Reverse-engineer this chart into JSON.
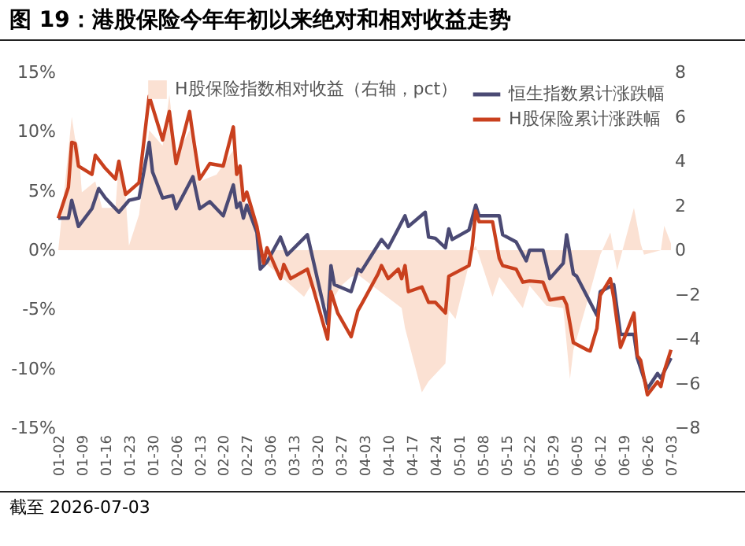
{
  "chart_data": {
    "type": "line",
    "title": "图 19：港股保险今年年初以来绝对和相对收益走势",
    "annotations": [
      "截至 2026-07-03"
    ],
    "legend": "top right",
    "xlim": [
      "2026-01-02",
      "2026-07-03"
    ],
    "xticks": [
      {
        "value": "2026-01-02",
        "label": "01-02"
      },
      {
        "value": "2026-01-09",
        "label": "01-09"
      },
      {
        "value": "2026-01-16",
        "label": "01-16"
      },
      {
        "value": "2026-01-23",
        "label": "01-23"
      },
      {
        "value": "2026-01-30",
        "label": "01-30"
      },
      {
        "value": "2026-02-06",
        "label": "02-06"
      },
      {
        "value": "2026-02-13",
        "label": "02-13"
      },
      {
        "value": "2026-02-20",
        "label": "02-20"
      },
      {
        "value": "2026-02-27",
        "label": "02-27"
      },
      {
        "value": "2026-03-06",
        "label": "03-06"
      },
      {
        "value": "2026-03-13",
        "label": "03-13"
      },
      {
        "value": "2026-03-20",
        "label": "03-20"
      },
      {
        "value": "2026-03-27",
        "label": "03-27"
      },
      {
        "value": "2026-04-03",
        "label": "04-03"
      },
      {
        "value": "2026-04-10",
        "label": "04-10"
      },
      {
        "value": "2026-04-17",
        "label": "04-17"
      },
      {
        "value": "2026-04-24",
        "label": "04-24"
      },
      {
        "value": "2026-05-01",
        "label": "05-01"
      },
      {
        "value": "2026-05-08",
        "label": "05-08"
      },
      {
        "value": "2026-05-15",
        "label": "05-15"
      },
      {
        "value": "2026-05-22",
        "label": "05-22"
      },
      {
        "value": "2026-05-29",
        "label": "05-29"
      },
      {
        "value": "2026-06-05",
        "label": "06-05"
      },
      {
        "value": "2026-06-12",
        "label": "06-12"
      },
      {
        "value": "2026-06-19",
        "label": "06-19"
      },
      {
        "value": "2026-06-26",
        "label": "06-26"
      },
      {
        "value": "2026-07-03",
        "label": "07-03"
      }
    ],
    "ylim": [
      -15,
      15
    ],
    "yticks": [
      {
        "value": -15,
        "label": "-15%"
      },
      {
        "value": -10,
        "label": "-10%"
      },
      {
        "value": -5,
        "label": "-5%"
      },
      {
        "value": 0,
        "label": "0%"
      },
      {
        "value": 5,
        "label": "5%"
      },
      {
        "value": 10,
        "label": "10%"
      },
      {
        "value": 15,
        "label": "15%"
      }
    ],
    "y2lim": [
      -8,
      8
    ],
    "y2ticks": [
      -8,
      -6,
      -4,
      -2,
      0,
      2,
      4,
      6,
      8
    ],
    "series": [
      {
        "name": "H股保险指数相对收益（右轴，pct）",
        "type": "area",
        "axis": "y2",
        "color": "#fbe1d3",
        "x": [
          "2026-01-02",
          "2026-01-06",
          "2026-01-07",
          "2026-01-08",
          "2026-01-09",
          "2026-01-13",
          "2026-01-15",
          "2026-01-19",
          "2026-01-20",
          "2026-01-22",
          "2026-01-23",
          "2026-01-26",
          "2026-01-29",
          "2026-02-02",
          "2026-02-04",
          "2026-02-06",
          "2026-02-10",
          "2026-02-13",
          "2026-02-18",
          "2026-02-23",
          "2026-02-26",
          "2026-03-02",
          "2026-03-04",
          "2026-03-16",
          "2026-03-18",
          "2026-03-23",
          "2026-03-27",
          "2026-03-30",
          "2026-04-01",
          "2026-04-07",
          "2026-04-14",
          "2026-04-15",
          "2026-04-20",
          "2026-04-22",
          "2026-04-27",
          "2026-04-28",
          "2026-04-30",
          "2026-05-05",
          "2026-05-06",
          "2026-05-11",
          "2026-05-13",
          "2026-05-20",
          "2026-05-22",
          "2026-05-27",
          "2026-06-01",
          "2026-06-03",
          "2026-06-04",
          "2026-06-08",
          "2026-06-12",
          "2026-06-15",
          "2026-06-17",
          "2026-06-22",
          "2026-06-24",
          "2026-06-25",
          "2026-06-30",
          "2026-07-01",
          "2026-07-03"
        ],
        "values": [
          0,
          6.0,
          5.0,
          4.7,
          2.6,
          3.1,
          1.9,
          1.9,
          4.1,
          2.4,
          0.2,
          1.6,
          5.4,
          4.7,
          7.0,
          4.2,
          5.4,
          3.1,
          3.4,
          4.5,
          2.4,
          0.7,
          -0.5,
          -2.1,
          -1.6,
          -2.6,
          -1.6,
          -1.2,
          -1.1,
          -1.8,
          -2.6,
          -3.5,
          -6.4,
          -5.9,
          -5.1,
          -2.7,
          -3.1,
          0,
          0.2,
          -2.1,
          -1.2,
          -2.6,
          -1.6,
          -2.5,
          -2.6,
          -5.8,
          -4.5,
          -2.4,
          -0.2,
          0.8,
          -0.9,
          1.9,
          0.3,
          -0.2,
          0,
          1.1,
          0.3
        ]
      },
      {
        "name": "恒生指数累计涨跌幅",
        "color": "#4b4a74",
        "x": [
          "2026-01-02",
          "2026-01-05",
          "2026-01-06",
          "2026-01-08",
          "2026-01-12",
          "2026-01-14",
          "2026-01-16",
          "2026-01-20",
          "2026-01-23",
          "2026-01-26",
          "2026-01-29",
          "2026-01-30",
          "2026-02-02",
          "2026-02-05",
          "2026-02-06",
          "2026-02-11",
          "2026-02-13",
          "2026-02-16",
          "2026-02-20",
          "2026-02-23",
          "2026-02-24",
          "2026-02-25",
          "2026-02-26",
          "2026-02-27",
          "2026-03-02",
          "2026-03-03",
          "2026-03-05",
          "2026-03-09",
          "2026-03-11",
          "2026-03-17",
          "2026-03-23",
          "2026-03-24",
          "2026-03-25",
          "2026-03-30",
          "2026-04-01",
          "2026-04-02",
          "2026-04-06",
          "2026-04-08",
          "2026-04-10",
          "2026-04-15",
          "2026-04-16",
          "2026-04-21",
          "2026-04-22",
          "2026-04-24",
          "2026-04-27",
          "2026-04-28",
          "2026-04-29",
          "2026-05-04",
          "2026-05-06",
          "2026-05-07",
          "2026-05-13",
          "2026-05-14",
          "2026-05-18",
          "2026-05-21",
          "2026-05-22",
          "2026-05-26",
          "2026-05-28",
          "2026-06-01",
          "2026-06-02",
          "2026-06-04",
          "2026-06-05",
          "2026-06-11",
          "2026-06-12",
          "2026-06-16",
          "2026-06-18",
          "2026-06-22",
          "2026-06-23",
          "2026-06-26",
          "2026-06-29",
          "2026-06-30",
          "2026-07-03"
        ],
        "values": [
          2.7,
          2.7,
          4.2,
          2.0,
          3.5,
          5.2,
          4.4,
          3.2,
          4.2,
          4.4,
          9.1,
          6.6,
          4.4,
          4.6,
          3.5,
          6.2,
          3.5,
          4.1,
          2.9,
          5.5,
          3.6,
          4.0,
          2.7,
          3.8,
          1.5,
          -1.6,
          -1.0,
          1.1,
          -0.4,
          1.3,
          -6.2,
          -1.3,
          -2.9,
          -3.5,
          -1.6,
          -1.8,
          0.0,
          0.9,
          0.2,
          2.9,
          2.0,
          3.2,
          1.1,
          1.0,
          0.2,
          1.8,
          0.9,
          1.7,
          3.8,
          2.9,
          2.9,
          1.3,
          0.7,
          -0.9,
          0.0,
          0.0,
          -2.4,
          -1.1,
          1.3,
          -2.0,
          -2.2,
          -5.5,
          -3.5,
          -2.9,
          -7.1,
          -7.1,
          -9.1,
          -11.7,
          -10.4,
          -10.8,
          -9.1
        ]
      },
      {
        "name": "H股保险累计涨跌幅",
        "color": "#c9401e",
        "x": [
          "2026-01-02",
          "2026-01-05",
          "2026-01-06",
          "2026-01-07",
          "2026-01-08",
          "2026-01-12",
          "2026-01-13",
          "2026-01-16",
          "2026-01-19",
          "2026-01-20",
          "2026-01-22",
          "2026-01-26",
          "2026-01-29",
          "2026-02-02",
          "2026-02-04",
          "2026-02-06",
          "2026-02-10",
          "2026-02-11",
          "2026-02-13",
          "2026-02-16",
          "2026-02-20",
          "2026-02-23",
          "2026-02-24",
          "2026-02-25",
          "2026-02-26",
          "2026-02-27",
          "2026-03-02",
          "2026-03-04",
          "2026-03-05",
          "2026-03-09",
          "2026-03-10",
          "2026-03-12",
          "2026-03-17",
          "2026-03-19",
          "2026-03-23",
          "2026-03-24",
          "2026-03-26",
          "2026-03-30",
          "2026-04-01",
          "2026-04-02",
          "2026-04-07",
          "2026-04-08",
          "2026-04-10",
          "2026-04-13",
          "2026-04-14",
          "2026-04-15",
          "2026-04-16",
          "2026-04-20",
          "2026-04-22",
          "2026-04-24",
          "2026-04-27",
          "2026-04-28",
          "2026-05-04",
          "2026-05-05",
          "2026-05-06",
          "2026-05-07",
          "2026-05-11",
          "2026-05-13",
          "2026-05-14",
          "2026-05-18",
          "2026-05-20",
          "2026-05-22",
          "2026-05-26",
          "2026-05-28",
          "2026-06-01",
          "2026-06-02",
          "2026-06-04",
          "2026-06-08",
          "2026-06-09",
          "2026-06-11",
          "2026-06-12",
          "2026-06-15",
          "2026-06-16",
          "2026-06-18",
          "2026-06-19",
          "2026-06-22",
          "2026-06-23",
          "2026-06-24",
          "2026-06-26",
          "2026-06-29",
          "2026-06-30",
          "2026-07-01",
          "2026-07-03"
        ],
        "values": [
          2.7,
          5.3,
          9.1,
          9.0,
          7.1,
          6.4,
          8.0,
          6.9,
          6.0,
          7.5,
          4.7,
          5.7,
          13.0,
          9.3,
          11.7,
          7.3,
          11.7,
          9.7,
          6.0,
          7.3,
          7.1,
          10.4,
          6.4,
          7.1,
          4.2,
          4.9,
          2.0,
          -1.1,
          0.2,
          -2.4,
          -1.2,
          -2.4,
          -1.6,
          -3.5,
          -7.5,
          -3.5,
          -5.3,
          -7.3,
          -5.1,
          -4.6,
          -2.0,
          -1.3,
          -2.4,
          -1.6,
          -2.4,
          -1.3,
          -3.5,
          -3.1,
          -4.4,
          -4.4,
          -5.3,
          -2.2,
          -1.3,
          0.4,
          3.3,
          2.4,
          2.4,
          -0.7,
          -1.3,
          -1.6,
          -2.7,
          -2.6,
          -2.7,
          -4.2,
          -4.0,
          -4.6,
          -7.8,
          -8.4,
          -8.5,
          -6.6,
          -3.8,
          -2.4,
          -4.0,
          -8.2,
          -7.5,
          -5.3,
          -8.9,
          -9.3,
          -12.2,
          -11.1,
          -11.5,
          -10.2,
          -8.4
        ]
      }
    ]
  }
}
